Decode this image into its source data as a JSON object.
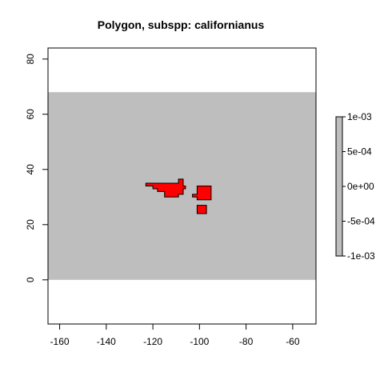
{
  "chart_data": {
    "type": "heatmap",
    "title": "Polygon, subspp: californianus",
    "xlabel": "",
    "ylabel": "",
    "xlim": [
      -165,
      -50
    ],
    "ylim": [
      -16,
      84
    ],
    "x_ticks": [
      -160,
      -140,
      -120,
      -100,
      -80,
      -60
    ],
    "x_tick_labels": [
      "-160",
      "-140",
      "-120",
      "-100",
      "-80",
      "-60"
    ],
    "y_ticks": [
      0,
      20,
      40,
      60,
      80
    ],
    "y_tick_labels": [
      "0",
      "20",
      "40",
      "60",
      "80"
    ],
    "raster_extent": {
      "xmin": -165,
      "xmax": -50,
      "ymin": 0,
      "ymax": 68
    },
    "raster_color": "#bebebe",
    "grid": false,
    "polygon_fill": "#ff0000",
    "polygon_stroke": "#000000",
    "polygons": [
      [
        [
          -123,
          35
        ],
        [
          -109,
          35
        ],
        [
          -109,
          36.5
        ],
        [
          -107,
          36.5
        ],
        [
          -107,
          34
        ],
        [
          -106,
          34
        ],
        [
          -106,
          33
        ],
        [
          -107,
          33
        ],
        [
          -107,
          31
        ],
        [
          -109,
          31
        ],
        [
          -109,
          30
        ],
        [
          -115,
          30
        ],
        [
          -115,
          32
        ],
        [
          -118,
          32
        ],
        [
          -118,
          33
        ],
        [
          -120,
          33
        ],
        [
          -120,
          34
        ],
        [
          -123,
          34
        ]
      ],
      [
        [
          -101,
          34
        ],
        [
          -95,
          34
        ],
        [
          -95,
          29
        ],
        [
          -101,
          29
        ],
        [
          -101,
          30
        ],
        [
          -103,
          30
        ],
        [
          -103,
          31
        ],
        [
          -101,
          31
        ]
      ],
      [
        [
          -101,
          27
        ],
        [
          -97,
          27
        ],
        [
          -97,
          24
        ],
        [
          -101,
          24
        ]
      ]
    ],
    "legend": {
      "placement": "right",
      "tick_labels": [
        "1e-03",
        "5e-04",
        "0e+00",
        "-5e-04",
        "-1e-03"
      ],
      "tick_values": [
        0.001,
        0.0005,
        0,
        -0.0005,
        -0.001
      ],
      "range": [
        -0.001,
        0.001
      ],
      "color": "#bebebe"
    }
  }
}
